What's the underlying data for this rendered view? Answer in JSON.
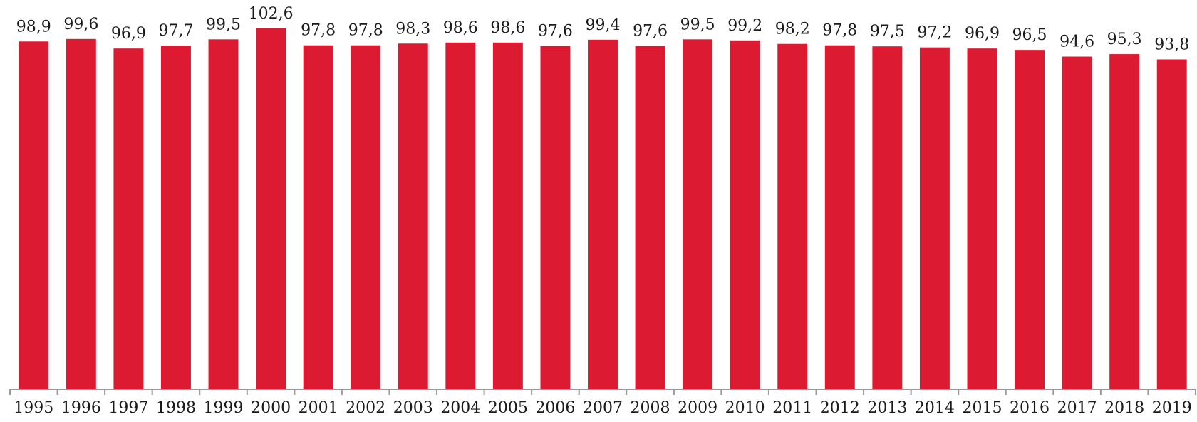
{
  "chart_data": {
    "type": "bar",
    "categories": [
      "1995",
      "1996",
      "1997",
      "1998",
      "1999",
      "2000",
      "2001",
      "2002",
      "2003",
      "2004",
      "2005",
      "2006",
      "2007",
      "2008",
      "2009",
      "2010",
      "2011",
      "2012",
      "2013",
      "2014",
      "2015",
      "2016",
      "2017",
      "2018",
      "2019"
    ],
    "values": [
      98.9,
      99.6,
      96.9,
      97.7,
      99.5,
      102.6,
      97.8,
      97.8,
      98.3,
      98.6,
      98.6,
      97.6,
      99.4,
      97.6,
      99.5,
      99.2,
      98.2,
      97.8,
      97.5,
      97.2,
      96.9,
      96.5,
      94.6,
      95.3,
      93.8
    ],
    "value_labels": [
      "98,9",
      "99,6",
      "96,9",
      "97,7",
      "99,5",
      "102,6",
      "97,8",
      "97,8",
      "98,3",
      "98,6",
      "98,6",
      "97,6",
      "99,4",
      "97,6",
      "99,5",
      "99,2",
      "98,2",
      "97,8",
      "97,5",
      "97,2",
      "96,9",
      "96,5",
      "94,6",
      "95,3",
      "93,8"
    ],
    "title": "",
    "xlabel": "",
    "ylabel": "",
    "ylim": [
      0,
      102.6
    ],
    "grid": false,
    "legend": "none",
    "bar_color": "#dc1a31",
    "axis_color": "#999999"
  }
}
